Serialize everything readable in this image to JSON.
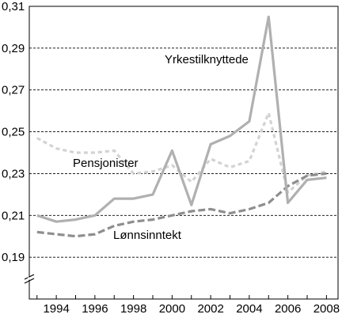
{
  "chart_data": {
    "type": "line",
    "title": "",
    "xlabel": "",
    "ylabel": "",
    "ylim": [
      0.17,
      0.31
    ],
    "xlim": [
      1992.6,
      2008.6
    ],
    "y_ticks": [
      "0,31",
      "0,29",
      "0,27",
      "0,25",
      "0,23",
      "0,21",
      "0,19"
    ],
    "y_tick_values": [
      0.31,
      0.29,
      0.27,
      0.25,
      0.23,
      0.21,
      0.19
    ],
    "x_ticks": [
      "1994",
      "1996",
      "1998",
      "2000",
      "2002",
      "2004",
      "2006",
      "2008"
    ],
    "x_tick_values": [
      1994,
      1996,
      1998,
      2000,
      2002,
      2004,
      2006,
      2008
    ],
    "axis_break": true,
    "grid": "horizontal dashed",
    "x": [
      1993,
      1994,
      1995,
      1996,
      1997,
      1998,
      1999,
      2000,
      2001,
      2002,
      2003,
      2004,
      2005,
      2006,
      2007,
      2008
    ],
    "series": [
      {
        "name": "Yrkestilknyttede",
        "style": "solid",
        "color": "#b0b0b0",
        "values": [
          0.21,
          0.207,
          0.208,
          0.21,
          0.218,
          0.218,
          0.22,
          0.241,
          0.215,
          0.244,
          0.248,
          0.255,
          0.305,
          0.216,
          0.227,
          0.228
        ]
      },
      {
        "name": "Pensjonister",
        "style": "dotted",
        "color": "#d3d3d3",
        "values": [
          0.247,
          0.242,
          0.24,
          0.24,
          0.241,
          0.23,
          0.231,
          0.234,
          0.226,
          0.237,
          0.233,
          0.236,
          0.259,
          0.221,
          0.229,
          0.231
        ]
      },
      {
        "name": "Lønnsinntekt",
        "style": "dashed",
        "color": "#8e8e8e",
        "values": [
          0.202,
          0.201,
          0.2,
          0.201,
          0.205,
          0.207,
          0.208,
          0.21,
          0.212,
          0.213,
          0.211,
          0.213,
          0.216,
          0.224,
          0.229,
          0.23
        ]
      }
    ],
    "annotations": [
      "Yrkestilknyttede",
      "Pensjonister",
      "Lønnsinntekt"
    ]
  }
}
